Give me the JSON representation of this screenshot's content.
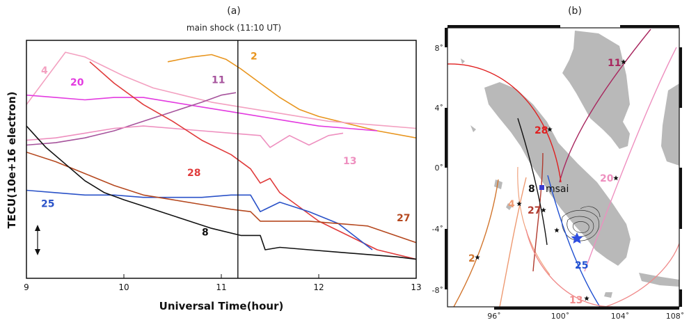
{
  "panel_a": {
    "title": "(a)",
    "chart_data": {
      "type": "line",
      "subtitle": "main shock (11:10 UT)",
      "xlabel": "Universal Time(hour)",
      "ylabel": "TECU(10e+16 electron)",
      "xlim": [
        9,
        13
      ],
      "ylim": [
        0,
        100
      ],
      "xticks": [
        "9",
        "10",
        "11",
        "12",
        "13"
      ],
      "vline_x": 11.17,
      "grid": false,
      "series": [
        {
          "name": "2",
          "color": "#e8951e",
          "label_at": [
            11.3,
            92
          ],
          "x": [
            10.45,
            10.7,
            10.9,
            11.05,
            11.2,
            11.4,
            11.6,
            11.8,
            12.0,
            12.3,
            12.6,
            13.0
          ],
          "y": [
            91,
            93,
            94,
            92,
            88,
            82,
            76,
            71,
            68,
            65,
            62,
            59
          ]
        },
        {
          "name": "4",
          "color": "#f3a0c0",
          "label_at": [
            9.15,
            86
          ],
          "x": [
            9.0,
            9.2,
            9.4,
            9.6,
            9.8,
            10.0,
            10.3,
            10.6,
            10.9,
            11.2,
            11.5,
            11.8,
            12.1,
            12.4,
            12.7,
            13.0
          ],
          "y": [
            73,
            84,
            95,
            93,
            89,
            85,
            80,
            77,
            74,
            72,
            70,
            68,
            66,
            65,
            64,
            63
          ]
        },
        {
          "name": "20",
          "color": "#e33be0",
          "label_at": [
            9.45,
            81
          ],
          "x": [
            9.0,
            9.3,
            9.6,
            9.9,
            10.2,
            10.5,
            10.8,
            11.1,
            11.4,
            11.7,
            12.0,
            12.3,
            12.6
          ],
          "y": [
            77,
            76,
            75,
            76,
            76,
            74,
            72,
            70,
            68,
            66,
            64,
            63,
            62
          ]
        },
        {
          "name": "11",
          "color": "#a6539c",
          "label_at": [
            10.9,
            82
          ],
          "x": [
            9.0,
            9.3,
            9.6,
            9.9,
            10.2,
            10.5,
            10.8,
            11.0,
            11.15
          ],
          "y": [
            56,
            57,
            59,
            62,
            66,
            70,
            74,
            77,
            78
          ]
        },
        {
          "name": "13",
          "color": "#ee8fbf",
          "label_at": [
            12.25,
            48
          ],
          "x": [
            9.0,
            9.3,
            9.6,
            9.9,
            10.2,
            10.5,
            10.8,
            11.1,
            11.4,
            11.5,
            11.7,
            11.9,
            12.1,
            12.25
          ],
          "y": [
            58,
            59,
            61,
            63,
            64,
            63,
            62,
            61,
            60,
            55,
            60,
            56,
            60,
            61
          ]
        },
        {
          "name": "28",
          "color": "#e03b3b",
          "label_at": [
            10.65,
            43
          ],
          "x": [
            9.65,
            9.9,
            10.2,
            10.5,
            10.8,
            11.1,
            11.3,
            11.4,
            11.5,
            11.6,
            11.8,
            12.0,
            12.3,
            12.6,
            13.0
          ],
          "y": [
            91,
            82,
            73,
            66,
            58,
            52,
            46,
            40,
            42,
            36,
            30,
            24,
            18,
            12,
            8
          ]
        },
        {
          "name": "25",
          "color": "#2a52c8",
          "label_at": [
            9.15,
            30
          ],
          "x": [
            9.0,
            9.3,
            9.6,
            9.9,
            10.2,
            10.5,
            10.8,
            11.1,
            11.3,
            11.4,
            11.6,
            11.9,
            12.2,
            12.55
          ],
          "y": [
            37,
            36,
            35,
            35,
            34,
            34,
            34,
            35,
            35,
            28,
            32,
            28,
            23,
            12
          ]
        },
        {
          "name": "27",
          "color": "#b5481f",
          "label_at": [
            12.8,
            24
          ],
          "x": [
            9.0,
            9.3,
            9.6,
            9.9,
            10.2,
            10.5,
            10.8,
            11.1,
            11.3,
            11.4,
            11.6,
            11.9,
            12.2,
            12.5,
            13.0
          ],
          "y": [
            53,
            49,
            44,
            39,
            35,
            33,
            31,
            29,
            28,
            24,
            24,
            24,
            23,
            22,
            15
          ]
        },
        {
          "name": "8",
          "color": "#111111",
          "label_at": [
            10.8,
            18
          ],
          "x": [
            9.0,
            9.2,
            9.4,
            9.6,
            9.8,
            10.0,
            10.3,
            10.6,
            10.9,
            11.2,
            11.4,
            11.45,
            11.6,
            11.9,
            12.2,
            12.5,
            12.8,
            13.0
          ],
          "y": [
            64,
            55,
            48,
            41,
            36,
            33,
            29,
            25,
            21,
            18,
            18,
            12,
            13,
            12,
            11,
            10,
            9,
            8
          ]
        }
      ]
    }
  },
  "panel_b": {
    "title": "(b)",
    "chart_data": {
      "type": "map",
      "xlim": [
        94,
        108
      ],
      "ylim": [
        -9,
        9
      ],
      "xticks": [
        "96˚",
        "100˚",
        "104˚",
        "108˚"
      ],
      "yticks": [
        "8˚",
        "4˚",
        "0˚",
        "-4˚",
        "-8˚"
      ],
      "station_label": "msai",
      "station_number": "8",
      "land_color": "#b9b9b9",
      "tracks": [
        {
          "name": "11",
          "color": "#a8265e"
        },
        {
          "name": "28",
          "color": "#e01f1f"
        },
        {
          "name": "20",
          "color": "#ee8fbf"
        },
        {
          "name": "4",
          "color": "#ee9a72"
        },
        {
          "name": "27",
          "color": "#b03a2e"
        },
        {
          "name": "8",
          "color": "#111111"
        },
        {
          "name": "2",
          "color": "#d2762e"
        },
        {
          "name": "25",
          "color": "#1f4fd1"
        },
        {
          "name": "13",
          "color": "#f08a8a"
        }
      ]
    }
  }
}
